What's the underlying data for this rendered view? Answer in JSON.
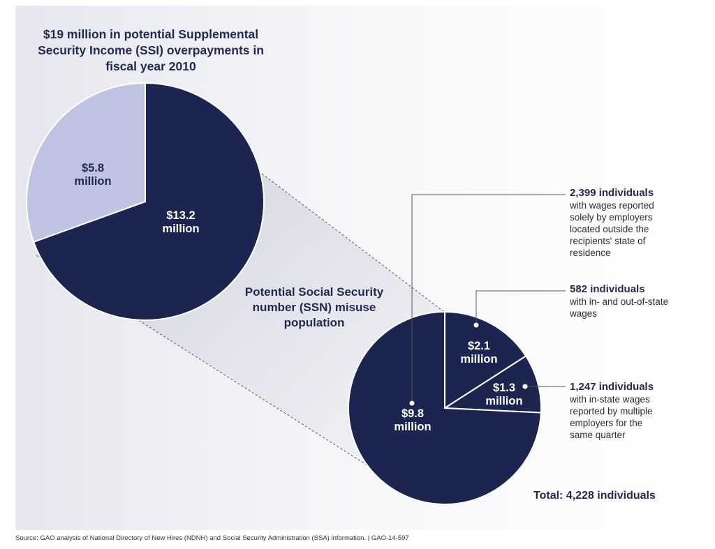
{
  "title": "$19 million in potential Supplemental Security Income (SSI) overpayments in fiscal year 2010",
  "subtitle": "Potential Social Security number (SSN) misuse population",
  "total": "Total: 4,228 individuals",
  "source": "Source: GAO analysis of National Directory of New Hires (NDNH) and Social Security Administration (SSA) information.  |  GAO-14-597",
  "colors": {
    "navy": "#1b2550",
    "light": "#bfc4e2",
    "bg": "#e9eaef"
  },
  "chart_data": [
    {
      "type": "pie",
      "title": "$19 million in potential Supplemental Security Income (SSI) overpayments in fiscal year 2010",
      "unit": "million dollars",
      "slices": [
        {
          "label_line1": "$13.2",
          "label_line2": "million",
          "value": 13.2,
          "color": "#1b2550"
        },
        {
          "label_line1": "$5.8",
          "label_line2": "million",
          "value": 5.8,
          "color": "#bfc4e2"
        }
      ]
    },
    {
      "type": "pie",
      "title": "Potential Social Security number (SSN) misuse population",
      "unit": "million dollars",
      "slices": [
        {
          "label_line1": "$9.8",
          "label_line2": "million",
          "value": 9.8,
          "color": "#1b2550",
          "annotation_head": "2,399 individuals",
          "annotation_lines": [
            "with wages reported",
            "solely by employers",
            "located outside the",
            "recipients' state of",
            "residence"
          ]
        },
        {
          "label_line1": "$2.1",
          "label_line2": "million",
          "value": 2.1,
          "color": "#1b2550",
          "annotation_head": "582 individuals",
          "annotation_lines": [
            "with in- and out-of-state",
            "wages"
          ]
        },
        {
          "label_line1": "$1.3",
          "label_line2": "million",
          "value": 1.3,
          "color": "#1b2550",
          "annotation_head": "1,247 individuals",
          "annotation_lines": [
            "with in-state wages",
            "reported by multiple",
            "employers for the",
            "same quarter"
          ]
        }
      ],
      "total": "Total: 4,228 individuals"
    }
  ]
}
